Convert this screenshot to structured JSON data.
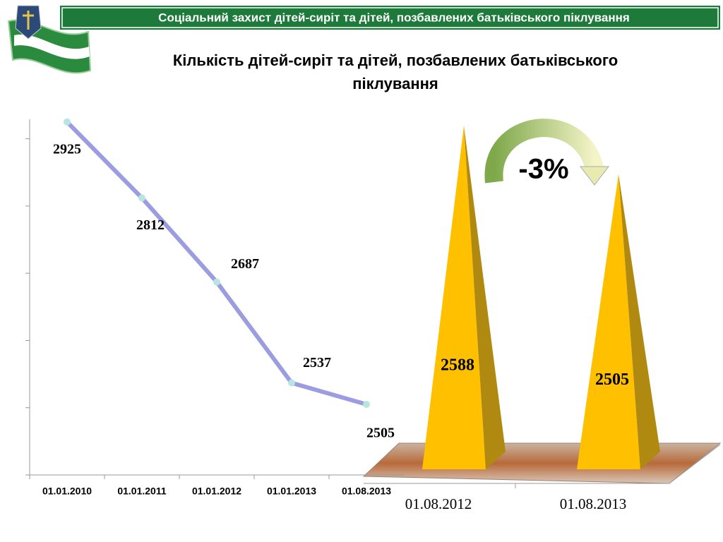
{
  "slide": {
    "banner": "Соціальний захист дітей-сиріт та дітей, позбавлених батьківського піклування",
    "title_lines": [
      "Кількість дітей-сиріт та дітей, позбавлених батьківського",
      "піклування"
    ]
  },
  "chart_data": [
    {
      "type": "line",
      "categories": [
        "01.01.2010",
        "01.01.2011",
        "01.01.2012",
        "01.01.2013",
        "01.08.2013"
      ],
      "values": [
        2925,
        2812,
        2687,
        2537,
        2505
      ],
      "color": "#9c9ce0",
      "marker_color": "#b8e4e4",
      "ylim": [
        2400,
        2950
      ],
      "yticks": [
        2400,
        2500,
        2600,
        2700,
        2800,
        2900
      ]
    },
    {
      "type": "pyramid",
      "categories": [
        "01.08.2012",
        "01.08.2013"
      ],
      "values": [
        2588,
        2505
      ],
      "color": "#ffc000",
      "ylim": [
        2000,
        2600
      ],
      "annotation": "-3%"
    }
  ]
}
